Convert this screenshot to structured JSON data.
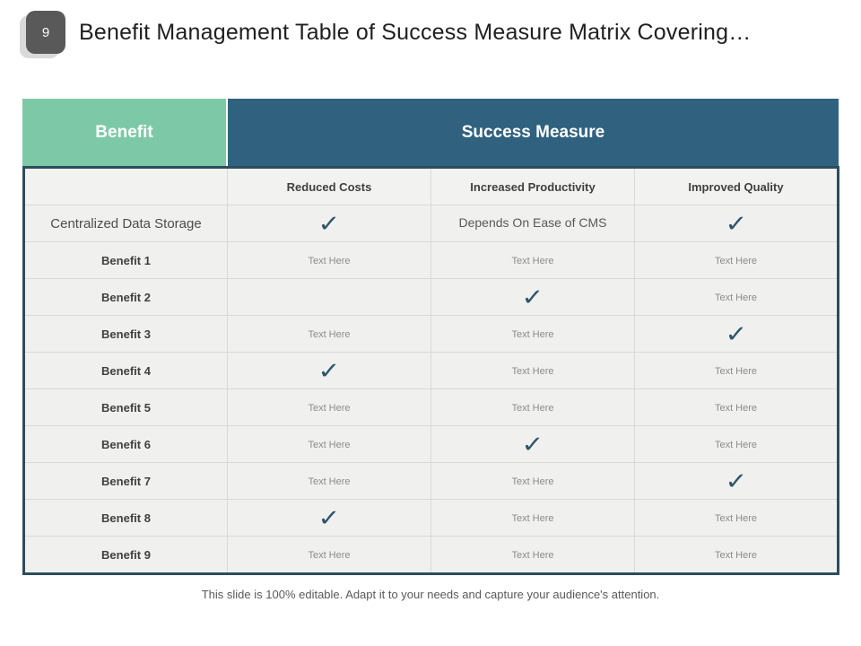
{
  "page": {
    "slide_number": "9",
    "title": "Benefit Management Table of Success Measure Matrix Covering…",
    "footer": "This slide is 100% editable. Adapt it to your needs and capture your audience's attention."
  },
  "colors": {
    "teal": "#7dc9a7",
    "dark_blue": "#30627f",
    "border_dark": "#2c4d5c",
    "body_bg": "#f0f0ee",
    "check": "#2f566d"
  },
  "table": {
    "benefit_header": "Benefit",
    "success_header": "Success Measure",
    "columns": [
      "Reduced Costs",
      "Increased Productivity",
      "Improved Quality"
    ],
    "check_glyph": "✓",
    "rows": [
      {
        "label": "Centralized Data Storage",
        "bold": false,
        "cells": [
          {
            "type": "check"
          },
          {
            "type": "text",
            "text": "Depends On Ease of CMS",
            "emphasis": true
          },
          {
            "type": "check"
          }
        ]
      },
      {
        "label": "Benefit 1",
        "bold": true,
        "cells": [
          {
            "type": "text",
            "text": "Text Here"
          },
          {
            "type": "text",
            "text": "Text Here"
          },
          {
            "type": "text",
            "text": "Text Here"
          }
        ]
      },
      {
        "label": "Benefit 2",
        "bold": true,
        "cells": [
          {
            "type": "empty"
          },
          {
            "type": "check"
          },
          {
            "type": "text",
            "text": "Text Here"
          }
        ]
      },
      {
        "label": "Benefit 3",
        "bold": true,
        "cells": [
          {
            "type": "text",
            "text": "Text Here"
          },
          {
            "type": "text",
            "text": "Text Here"
          },
          {
            "type": "check"
          }
        ]
      },
      {
        "label": "Benefit 4",
        "bold": true,
        "cells": [
          {
            "type": "check"
          },
          {
            "type": "text",
            "text": "Text Here"
          },
          {
            "type": "text",
            "text": "Text Here"
          }
        ]
      },
      {
        "label": "Benefit 5",
        "bold": true,
        "cells": [
          {
            "type": "text",
            "text": "Text Here"
          },
          {
            "type": "text",
            "text": "Text Here"
          },
          {
            "type": "text",
            "text": "Text Here"
          }
        ]
      },
      {
        "label": "Benefit 6",
        "bold": true,
        "cells": [
          {
            "type": "text",
            "text": "Text Here"
          },
          {
            "type": "check"
          },
          {
            "type": "text",
            "text": "Text Here"
          }
        ]
      },
      {
        "label": "Benefit 7",
        "bold": true,
        "cells": [
          {
            "type": "text",
            "text": "Text Here"
          },
          {
            "type": "text",
            "text": "Text Here"
          },
          {
            "type": "check"
          }
        ]
      },
      {
        "label": "Benefit 8",
        "bold": true,
        "cells": [
          {
            "type": "check"
          },
          {
            "type": "text",
            "text": "Text Here"
          },
          {
            "type": "text",
            "text": "Text Here"
          }
        ]
      },
      {
        "label": "Benefit 9",
        "bold": true,
        "cells": [
          {
            "type": "text",
            "text": "Text Here"
          },
          {
            "type": "text",
            "text": "Text Here"
          },
          {
            "type": "text",
            "text": "Text Here"
          }
        ]
      }
    ]
  }
}
